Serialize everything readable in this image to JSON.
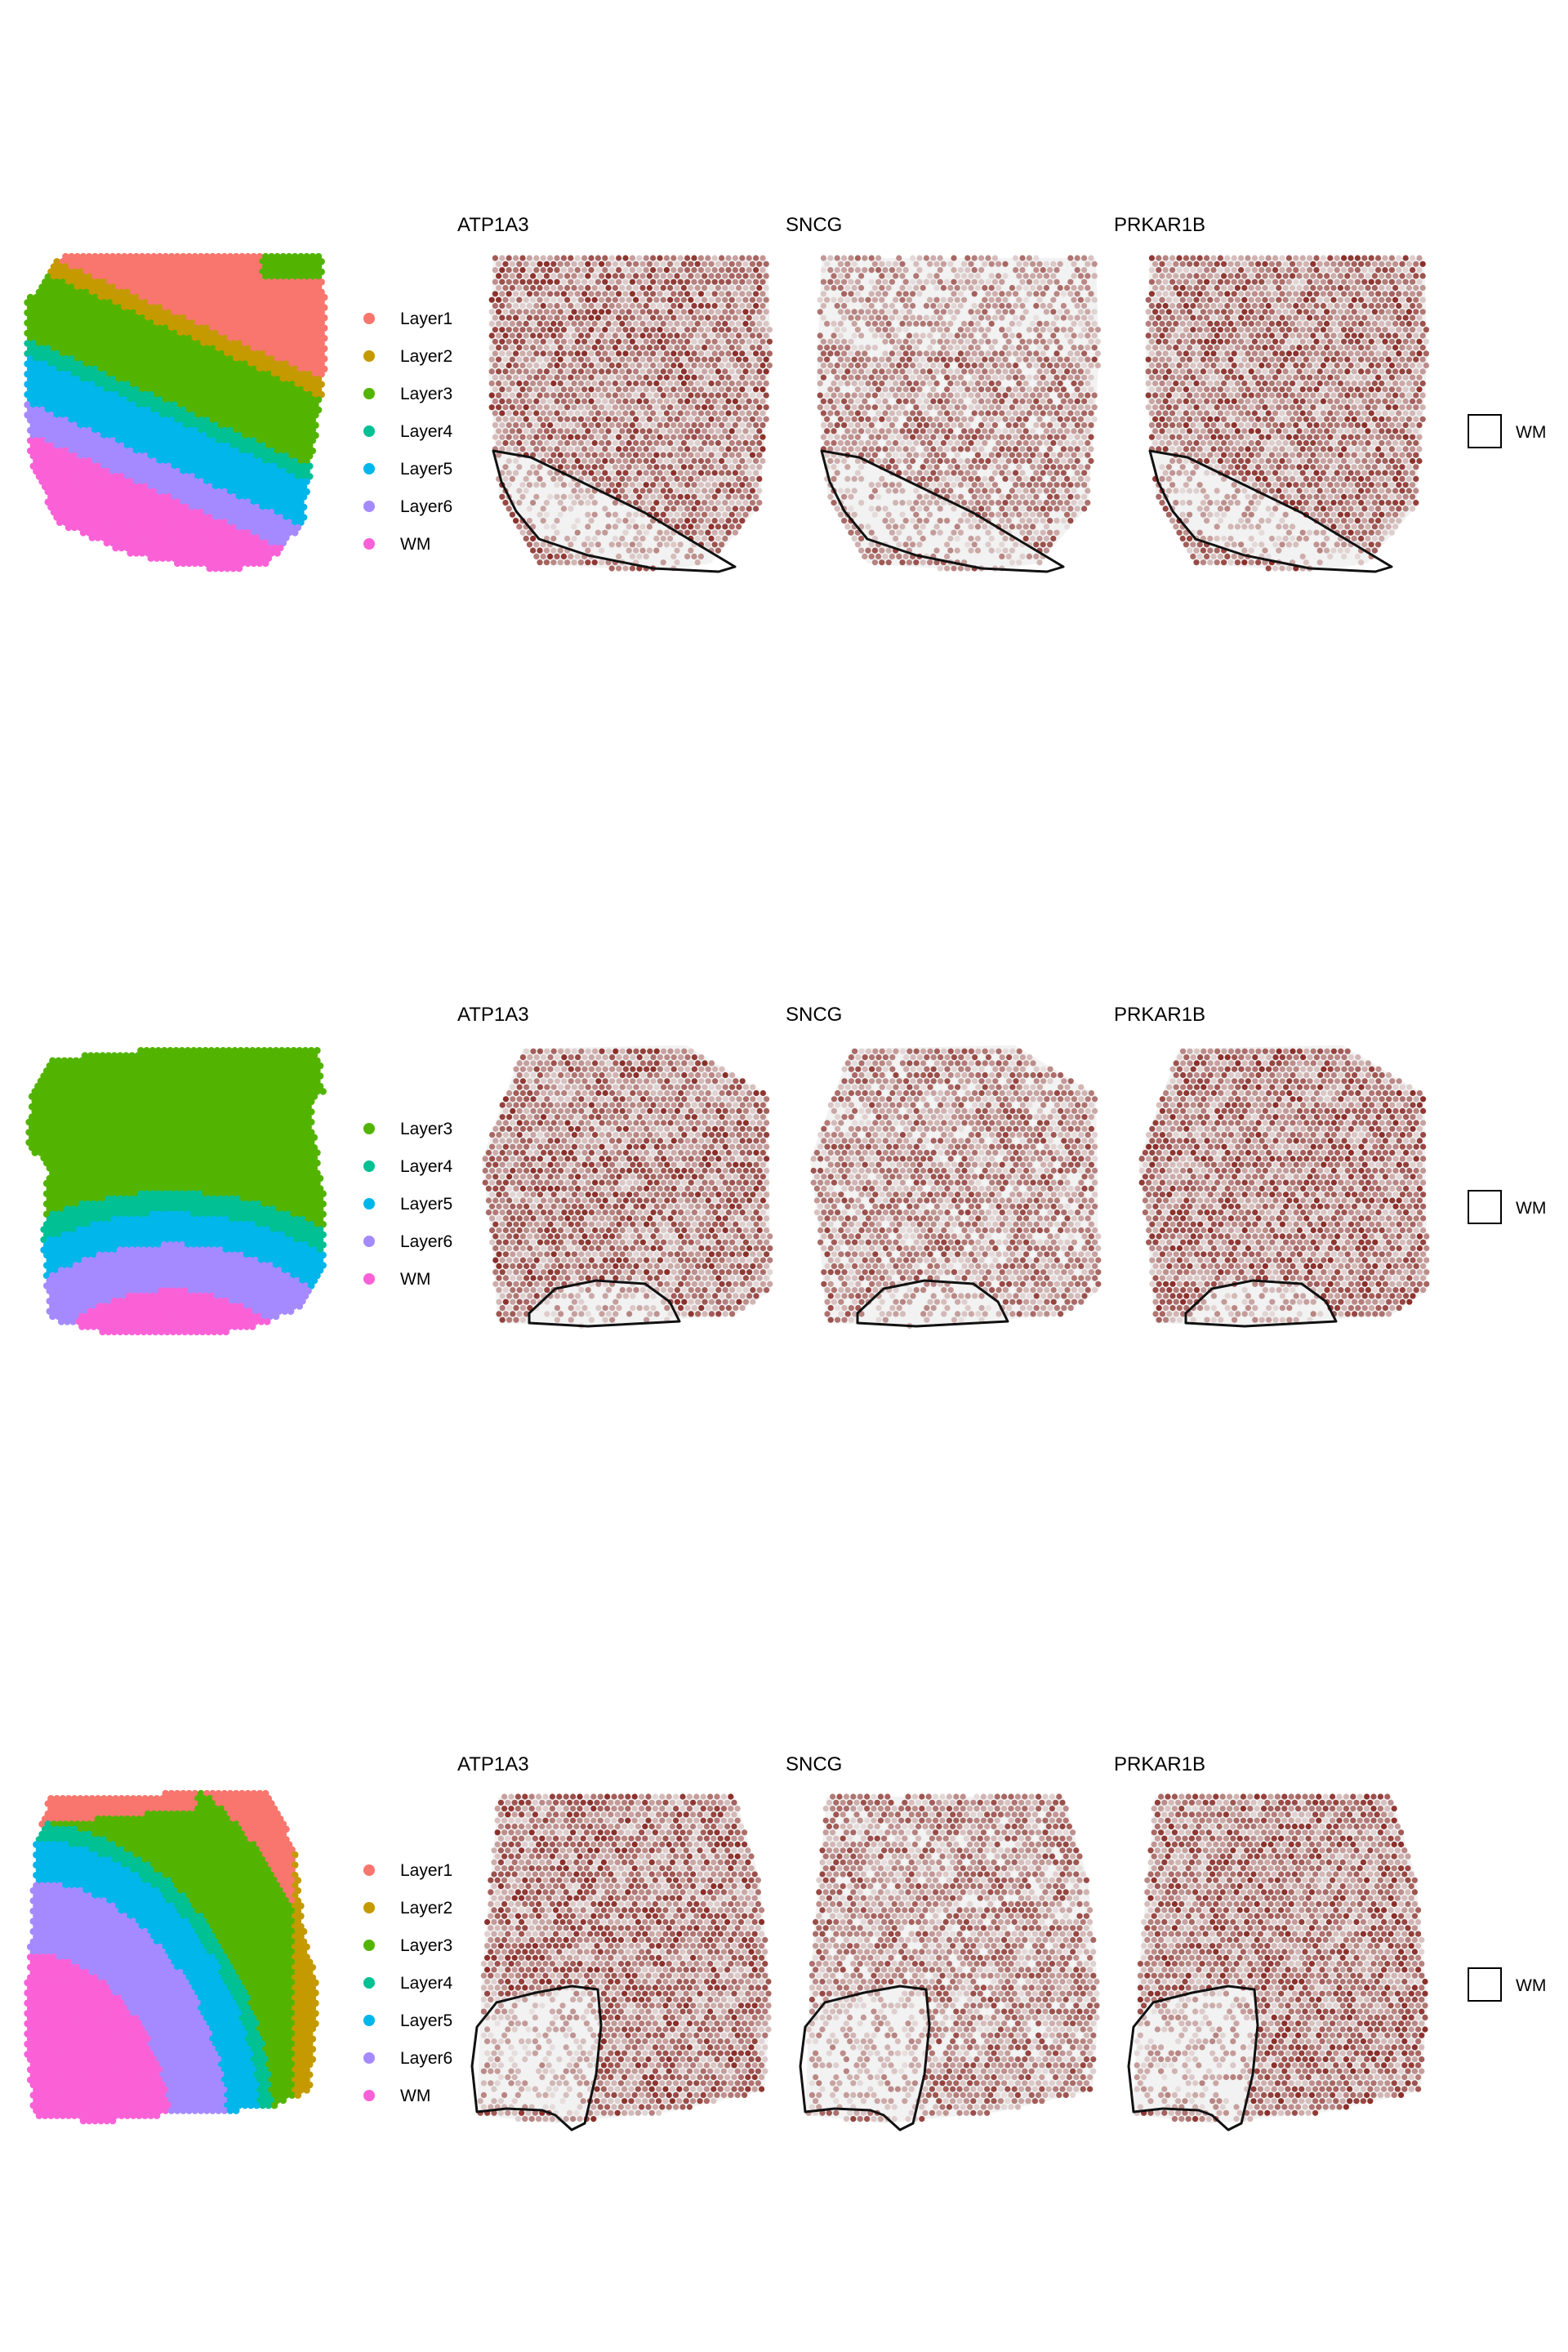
{
  "colors": {
    "Layer1": "#F8766D",
    "Layer2": "#C49A00",
    "Layer3": "#53B400",
    "Layer4": "#00C094",
    "Layer5": "#00B6EB",
    "Layer6": "#A58AFF",
    "WM": "#FB61D7",
    "expr_low": "#efefef",
    "expr_high": "#8b2f2a",
    "outline": "#111111"
  },
  "genes": [
    "ATP1A3",
    "SNCG",
    "PRKAR1B"
  ],
  "rows": [
    {
      "legend": [
        "Layer1",
        "Layer2",
        "Layer3",
        "Layer4",
        "Layer5",
        "Layer6",
        "WM"
      ],
      "outline_label": "WM"
    },
    {
      "legend": [
        "Layer3",
        "Layer4",
        "Layer5",
        "Layer6",
        "WM"
      ],
      "outline_label": "WM"
    },
    {
      "legend": [
        "Layer1",
        "Layer2",
        "Layer3",
        "Layer4",
        "Layer5",
        "Layer6",
        "WM"
      ],
      "outline_label": "WM"
    }
  ]
}
